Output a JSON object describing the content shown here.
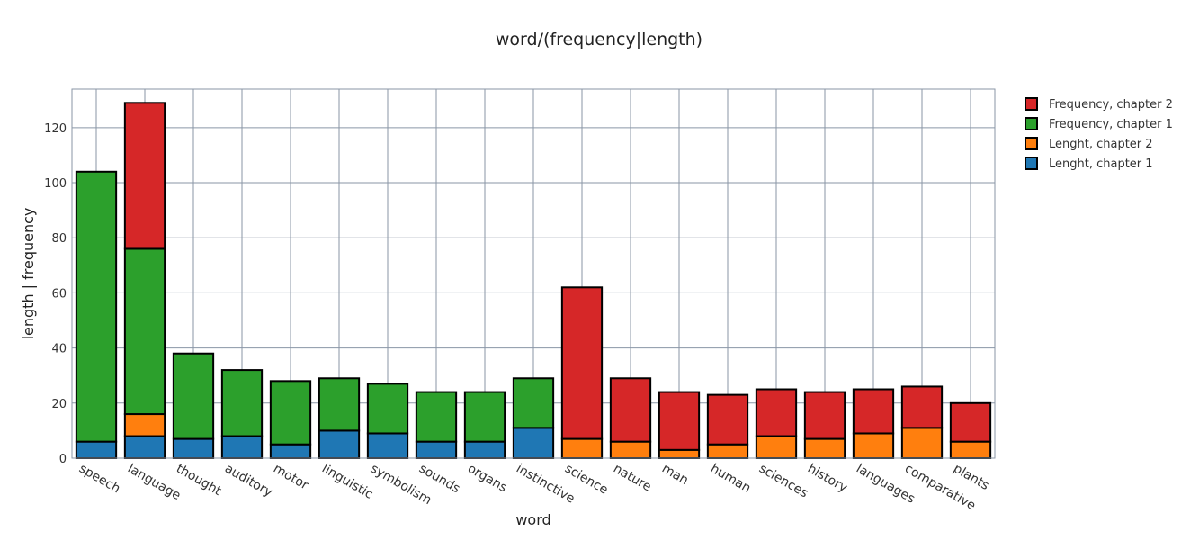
{
  "chart_data": {
    "type": "bar",
    "stacked": true,
    "title": "word/(frequency|length)",
    "xlabel": "word",
    "ylabel": "length | frequency",
    "ylim": [
      0,
      134
    ],
    "yticks": [
      0,
      20,
      40,
      60,
      80,
      100,
      120
    ],
    "grid": true,
    "legend_position": "right",
    "categories": [
      "speech",
      "language",
      "thought",
      "auditory",
      "motor",
      "linguistic",
      "symbolism",
      "sounds",
      "organs",
      "instinctive",
      "science",
      "nature",
      "man",
      "human",
      "sciences",
      "history",
      "languages",
      "comparative",
      "plants"
    ],
    "series": [
      {
        "name": "Lenght, chapter 1",
        "color": "#1f77b4",
        "values": [
          6,
          8,
          7,
          8,
          5,
          10,
          9,
          6,
          6,
          11,
          0,
          0,
          0,
          0,
          0,
          0,
          0,
          0,
          0
        ]
      },
      {
        "name": "Lenght, chapter 2",
        "color": "#ff7f0e",
        "values": [
          0,
          8,
          0,
          0,
          0,
          0,
          0,
          0,
          0,
          0,
          7,
          6,
          3,
          5,
          8,
          7,
          9,
          11,
          6
        ]
      },
      {
        "name": "Frequency, chapter 1",
        "color": "#2ca02c",
        "values": [
          98,
          60,
          31,
          24,
          23,
          19,
          18,
          18,
          18,
          18,
          0,
          0,
          0,
          0,
          0,
          0,
          0,
          0,
          0
        ]
      },
      {
        "name": "Frequency, chapter 2",
        "color": "#d62728",
        "values": [
          0,
          53,
          0,
          0,
          0,
          0,
          0,
          0,
          0,
          0,
          55,
          23,
          21,
          18,
          17,
          17,
          16,
          15,
          14
        ]
      }
    ],
    "legend_order": [
      "Frequency, chapter 2",
      "Frequency, chapter 1",
      "Lenght, chapter 2",
      "Lenght, chapter 1"
    ]
  }
}
